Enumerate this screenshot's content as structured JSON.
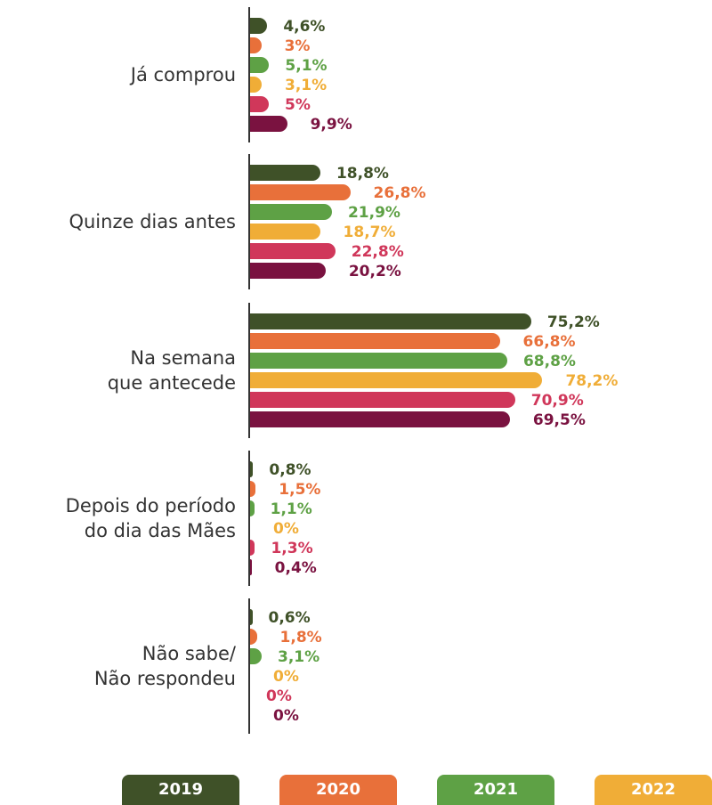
{
  "chart_data": {
    "type": "bar",
    "orientation": "horizontal",
    "categories": [
      "Já comprou",
      "Quinze dias antes",
      "Na semana\nque antecede",
      "Depois do período\ndo dia das Mães",
      "Não sabe/\nNão respondeu"
    ],
    "xlim": [
      0,
      100
    ],
    "series": [
      {
        "name": "2019",
        "color": "#3f5128",
        "values": [
          4.6,
          18.8,
          75.2,
          0.8,
          0.6
        ],
        "value_labels": [
          "4,6%",
          "18,8%",
          "75,2%",
          "0,8%",
          "0,6%"
        ]
      },
      {
        "name": "2020",
        "color": "#e8703a",
        "values": [
          3,
          26.8,
          66.8,
          1.5,
          1.8
        ],
        "value_labels": [
          "3%",
          "26,8%",
          "66,8%",
          "1,5%",
          "1,8%"
        ]
      },
      {
        "name": "2021",
        "color": "#5ea145",
        "values": [
          5.1,
          21.9,
          68.8,
          1.1,
          3.1
        ],
        "value_labels": [
          "5,1%",
          "21,9%",
          "68,8%",
          "1,1%",
          "3,1%"
        ]
      },
      {
        "name": "2022",
        "color": "#f0ad37",
        "values": [
          3.1,
          18.7,
          78.2,
          0,
          0
        ],
        "value_labels": [
          "3,1%",
          "18,7%",
          "78,2%",
          "0%",
          "0%"
        ]
      },
      {
        "color": "#d0375a",
        "values": [
          5,
          22.8,
          70.9,
          1.3,
          0
        ],
        "value_labels": [
          "5%",
          "22,8%",
          "70,9%",
          "1,3%",
          "0%"
        ]
      },
      {
        "color": "#7a1240",
        "values": [
          9.9,
          20.2,
          69.5,
          0.4,
          0
        ],
        "value_labels": [
          "9,9%",
          "20,2%",
          "69,5%",
          "0,4%",
          "0%"
        ]
      }
    ]
  }
}
